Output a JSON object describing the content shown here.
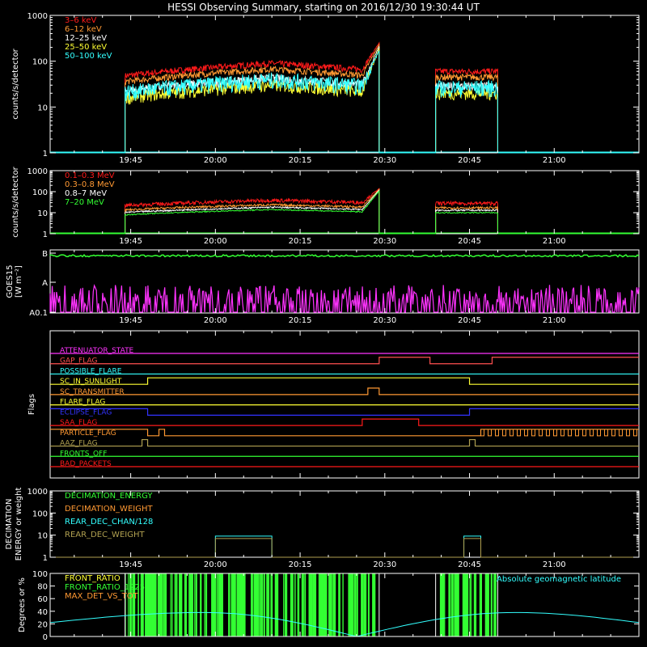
{
  "title": "HESSI Observing Summary, starting on 2016/12/30 19:30:44 UT",
  "colors": {
    "black": "#000000",
    "white": "#ffffff",
    "red": "#ff1a1a",
    "orange": "#ff9933",
    "yellow": "#ffff33",
    "green": "#33ff33",
    "cyan": "#33ffff",
    "magenta": "#ff33ff",
    "blue": "#3333ff",
    "olive": "#b0a050",
    "purple": "#b040ff",
    "pink": "#ff5050",
    "grey": "#cccccc"
  },
  "chart_data": [
    {
      "id": "energy",
      "type": "line",
      "ylabel": "counts/s/detector",
      "ylog": true,
      "ylim": [
        1,
        1000
      ],
      "yticks": [
        "1",
        "10",
        "100",
        "1000"
      ],
      "xlim": [
        "19:30:44",
        "21:15"
      ],
      "xticks": [
        "19:45",
        "20:00",
        "20:15",
        "20:30",
        "20:45",
        "21:00"
      ],
      "legend_position": "top-left",
      "series": [
        {
          "name": "3–6 keV",
          "color": "red",
          "level": 60,
          "noise": 0.08
        },
        {
          "name": "6–12 keV",
          "color": "orange",
          "level": 45,
          "noise": 0.08
        },
        {
          "name": "12–25 keV",
          "color": "white",
          "level": 28,
          "noise": 0.12
        },
        {
          "name": "25–50 keV",
          "color": "yellow",
          "level": 20,
          "noise": 0.15
        },
        {
          "name": "50–100 keV",
          "color": "cyan",
          "level": 27,
          "noise": 0.2
        }
      ],
      "intervals": [
        [
          "19:44",
          "20:29"
        ],
        [
          "20:39",
          "20:50"
        ]
      ],
      "flare": {
        "start": "20:26",
        "end": "20:29",
        "peak": 250
      },
      "trend": [
        [
          "19:44",
          0.8
        ],
        [
          "20:10",
          1.5
        ],
        [
          "20:26",
          1.1
        ]
      ]
    },
    {
      "id": "gamma",
      "type": "line",
      "ylabel": "counts/s/detector",
      "ylog": true,
      "ylim": [
        1,
        1000
      ],
      "yticks": [
        "1",
        "10",
        "100",
        "1000"
      ],
      "xlim": [
        "19:30:44",
        "21:15"
      ],
      "xticks": [
        "19:45",
        "20:00",
        "20:15",
        "20:30",
        "20:45",
        "21:00"
      ],
      "legend_position": "top-left",
      "series": [
        {
          "name": "0.1–0.3 MeV",
          "color": "red",
          "level": 28,
          "noise": 0.1
        },
        {
          "name": "0.3–0.8 MeV",
          "color": "orange",
          "level": 17,
          "noise": 0.06
        },
        {
          "name": "0.8–7 MeV",
          "color": "white",
          "level": 13,
          "noise": 0.04
        },
        {
          "name": "7–20 MeV",
          "color": "green",
          "level": 10,
          "noise": 0.03
        }
      ],
      "intervals": [
        [
          "19:44",
          "20:29"
        ],
        [
          "20:39",
          "20:50"
        ]
      ],
      "flare": {
        "start": "20:26",
        "end": "20:29",
        "peak": 140
      },
      "trend": [
        [
          "19:44",
          0.8
        ],
        [
          "20:10",
          1.4
        ],
        [
          "20:26",
          1.1
        ]
      ]
    },
    {
      "id": "goes",
      "type": "line",
      "ylabel": "GOES15",
      "ylabel2": "[W m⁻²]",
      "ylog": true,
      "yticks": [
        "A0.1",
        "A",
        "B"
      ],
      "xlim": [
        "19:30:44",
        "21:15"
      ],
      "xticks": [
        "19:45",
        "20:00",
        "20:15",
        "20:30",
        "20:45",
        "21:00"
      ]
    },
    {
      "id": "flags",
      "type": "line",
      "ylabel": "Flags",
      "xlim": [
        "19:30:44",
        "21:15"
      ],
      "flags": [
        {
          "name": "ATTENUATOR_STATE",
          "color": "magenta",
          "high": []
        },
        {
          "name": "GAP_FLAG",
          "color": "pink",
          "high": [
            [
              "20:29",
              "20:38"
            ],
            [
              "20:49",
              "21:15"
            ]
          ]
        },
        {
          "name": "POSSIBLE_FLARE",
          "color": "cyan",
          "high": []
        },
        {
          "name": "SC_IN_SUNLIGHT",
          "color": "yellow",
          "high": [
            [
              "19:48",
              "20:45"
            ]
          ]
        },
        {
          "name": "SC_TRANSMITTER",
          "color": "orange",
          "high": [
            [
              "20:27",
              "20:29"
            ]
          ]
        },
        {
          "name": "FLARE_FLAG",
          "color": "yellow",
          "high": []
        },
        {
          "name": "ECLIPSE_FLAG",
          "color": "blue",
          "high": [
            [
              "19:30:44",
              "19:48"
            ],
            [
              "20:45",
              "21:15"
            ]
          ]
        },
        {
          "name": "SAA_FLAG",
          "color": "red",
          "high": [
            [
              "20:26",
              "20:36"
            ]
          ]
        },
        {
          "name": "PARTICLE_FLAG",
          "color": "orange",
          "high": [
            [
              "19:30:44",
              "19:48"
            ],
            [
              "19:50",
              "19:51"
            ],
            [
              "20:47",
              "21:15"
            ]
          ]
        },
        {
          "name": "AAZ_FLAG",
          "color": "olive",
          "high": [
            [
              "19:47",
              "19:48"
            ],
            [
              "20:45",
              "20:46"
            ]
          ]
        },
        {
          "name": "FRONTS_OFF",
          "color": "green",
          "high": []
        },
        {
          "name": "BAD_PACKETS",
          "color": "red",
          "high": []
        }
      ]
    },
    {
      "id": "decimation",
      "type": "line",
      "ylabel": "DECIMATION",
      "ylabel2": "ENERGY or weight",
      "ylog": true,
      "ylim": [
        1,
        1000
      ],
      "yticks": [
        "1",
        "10",
        "100",
        "1000"
      ],
      "xlim": [
        "19:30:44",
        "21:15"
      ],
      "xticks": [
        "19:45",
        "20:00",
        "20:15",
        "20:30",
        "20:45",
        "21:00"
      ],
      "legend_position": "top-left",
      "series": [
        {
          "name": "DECIMATION_ENERGY",
          "color": "green"
        },
        {
          "name": "DECIMATION_WEIGHT",
          "color": "orange"
        },
        {
          "name": "REAR_DEC_CHAN/128",
          "color": "cyan",
          "high": [
            [
              "20:00",
              "20:10"
            ],
            [
              "20:44",
              "20:47"
            ]
          ],
          "value": 9
        },
        {
          "name": "REAR_DEC_WEIGHT",
          "color": "olive",
          "high": [
            [
              "20:00",
              "20:10"
            ],
            [
              "20:44",
              "20:47"
            ]
          ],
          "value": 7
        }
      ]
    },
    {
      "id": "ratio",
      "type": "line",
      "ylabel": "Degrees or %",
      "ylim": [
        0,
        100
      ],
      "yticks": [
        "0",
        "20",
        "40",
        "60",
        "80",
        "100"
      ],
      "xlim": [
        "19:30:44",
        "21:15"
      ],
      "legend_position": "top-left",
      "series": [
        {
          "name": "FRONT_RATIO",
          "color": "yellow"
        },
        {
          "name": "FRONT_RATIO_1225",
          "color": "green"
        },
        {
          "name": "MAX_DET_VS_TOT",
          "color": "orange"
        }
      ],
      "right_label": "Absolute geomagnetic latitude",
      "latitude": [
        [
          "19:30:44",
          22
        ],
        [
          "19:58",
          38
        ],
        [
          "20:25",
          0
        ],
        [
          "20:53",
          38
        ],
        [
          "21:15",
          22
        ]
      ]
    }
  ]
}
